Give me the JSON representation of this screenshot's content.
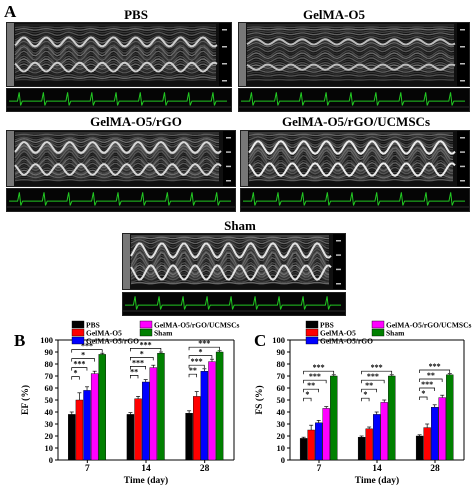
{
  "figure": {
    "panel_a": "A",
    "panel_b": "B",
    "panel_c": "C",
    "echo_titles": [
      "PBS",
      "GelMA-O5",
      "GelMA-O5/rGO",
      "GelMA-O5/rGO/UCMSCs",
      "Sham"
    ]
  },
  "colors": {
    "PBS": "#000000",
    "GelMA-O5": "#ff0000",
    "GelMA-O5/rGO": "#0000ff",
    "GelMA-O5/rGO/UCMSCs": "#ff00ff",
    "Sham": "#008000"
  },
  "chart_data": [
    {
      "type": "bar",
      "panel": "B",
      "categories": [
        "7",
        "14",
        "28"
      ],
      "xlabel": "Time (day)",
      "ylabel": "EF (%)",
      "ylim": [
        0,
        100
      ],
      "yticks": [
        "0",
        "10",
        "20",
        "30",
        "40",
        "50",
        "60",
        "70",
        "80",
        "90",
        "100"
      ],
      "legend_position": "top",
      "series": [
        {
          "name": "PBS",
          "values": [
            38,
            38,
            39
          ],
          "errors": [
            2,
            1.5,
            2
          ]
        },
        {
          "name": "GelMA-O5",
          "values": [
            50,
            51,
            53
          ],
          "errors": [
            6,
            2,
            4
          ]
        },
        {
          "name": "GelMA-O5/rGO",
          "values": [
            58,
            65,
            74
          ],
          "errors": [
            3,
            2,
            2
          ]
        },
        {
          "name": "GelMA-O5/rGO/UCMSCs",
          "values": [
            72,
            77,
            82
          ],
          "errors": [
            2,
            2,
            2
          ]
        },
        {
          "name": "Sham",
          "values": [
            88,
            89,
            90
          ],
          "errors": [
            1,
            1,
            1
          ]
        }
      ],
      "significance": [
        {
          "group": 0,
          "level": 0,
          "label": "***"
        },
        {
          "group": 0,
          "level": 1,
          "label": "*"
        },
        {
          "group": 0,
          "level": 2,
          "label": "***"
        },
        {
          "group": 0,
          "level": 3,
          "label": "*"
        },
        {
          "group": 1,
          "level": 0,
          "label": "***"
        },
        {
          "group": 1,
          "level": 1,
          "label": "*"
        },
        {
          "group": 1,
          "level": 2,
          "label": "***"
        },
        {
          "group": 1,
          "level": 3,
          "label": "**"
        },
        {
          "group": 2,
          "level": 0,
          "label": "***"
        },
        {
          "group": 2,
          "level": 1,
          "label": "*"
        },
        {
          "group": 2,
          "level": 2,
          "label": "***"
        },
        {
          "group": 2,
          "level": 3,
          "label": "**"
        }
      ]
    },
    {
      "type": "bar",
      "panel": "C",
      "categories": [
        "7",
        "14",
        "28"
      ],
      "xlabel": "Time (day)",
      "ylabel": "FS (%)",
      "ylim": [
        0,
        100
      ],
      "yticks": [
        "0",
        "10",
        "20",
        "30",
        "40",
        "50",
        "60",
        "70",
        "80",
        "90",
        "100"
      ],
      "legend_position": "top",
      "series": [
        {
          "name": "PBS",
          "values": [
            18,
            19,
            20
          ],
          "errors": [
            1,
            1,
            1
          ]
        },
        {
          "name": "GelMA-O5",
          "values": [
            25,
            26,
            27
          ],
          "errors": [
            4,
            1.5,
            3
          ]
        },
        {
          "name": "GelMA-O5/rGO",
          "values": [
            31,
            38,
            44
          ],
          "errors": [
            2,
            2,
            2
          ]
        },
        {
          "name": "GelMA-O5/rGO/UCMSCs",
          "values": [
            43,
            48,
            52
          ],
          "errors": [
            1.5,
            2,
            2
          ]
        },
        {
          "name": "Sham",
          "values": [
            70,
            70,
            71
          ],
          "errors": [
            1,
            1,
            1
          ]
        }
      ],
      "significance": [
        {
          "group": 0,
          "level": 0,
          "label": "***"
        },
        {
          "group": 0,
          "level": 1,
          "label": "***"
        },
        {
          "group": 0,
          "level": 2,
          "label": "**"
        },
        {
          "group": 0,
          "level": 3,
          "label": "*"
        },
        {
          "group": 1,
          "level": 0,
          "label": "***"
        },
        {
          "group": 1,
          "level": 1,
          "label": "***"
        },
        {
          "group": 1,
          "level": 2,
          "label": "**"
        },
        {
          "group": 1,
          "level": 3,
          "label": "*"
        },
        {
          "group": 2,
          "level": 0,
          "label": "***"
        },
        {
          "group": 2,
          "level": 1,
          "label": "**"
        },
        {
          "group": 2,
          "level": 2,
          "label": "***"
        },
        {
          "group": 2,
          "level": 3,
          "label": "*"
        }
      ]
    }
  ]
}
